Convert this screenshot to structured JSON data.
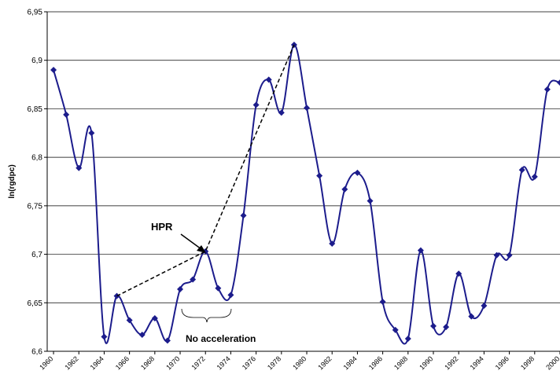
{
  "chart_data": {
    "type": "line",
    "y_label": "ln(rgdpc)",
    "x": [
      1960,
      1961,
      1962,
      1963,
      1964,
      1965,
      1966,
      1967,
      1968,
      1969,
      1970,
      1971,
      1972,
      1973,
      1974,
      1975,
      1976,
      1977,
      1978,
      1979,
      1980,
      1981,
      1982,
      1983,
      1984,
      1985,
      1986,
      1987,
      1988,
      1989,
      1990,
      1991,
      1992,
      1993,
      1994,
      1995,
      1996,
      1997,
      1998,
      1999,
      2000
    ],
    "series": [
      {
        "color": "#1c1c8c",
        "values": [
          6.89,
          6.844,
          6.789,
          6.825,
          6.615,
          6.657,
          6.632,
          6.617,
          6.634,
          6.611,
          6.664,
          6.674,
          6.703,
          6.665,
          6.658,
          6.74,
          6.854,
          6.88,
          6.846,
          6.916,
          6.851,
          6.781,
          6.711,
          6.767,
          6.784,
          6.755,
          6.651,
          6.622,
          6.613,
          6.704,
          6.626,
          6.625,
          6.68,
          6.636,
          6.647,
          6.699,
          6.699,
          6.787,
          6.78,
          6.87,
          6.877
        ]
      }
    ],
    "xlim": [
      1959.5,
      2000
    ],
    "xticks": [
      1960,
      1962,
      1964,
      1966,
      1968,
      1970,
      1972,
      1974,
      1976,
      1978,
      1980,
      1982,
      1984,
      1986,
      1988,
      1990,
      1992,
      1994,
      1996,
      1998,
      2000
    ],
    "ylim": [
      6.6,
      6.95
    ],
    "yticks": [
      {
        "value": 6.6,
        "label": "6,6"
      },
      {
        "value": 6.65,
        "label": "6,65"
      },
      {
        "value": 6.7,
        "label": "6,7"
      },
      {
        "value": 6.75,
        "label": "6,75"
      },
      {
        "value": 6.8,
        "label": "6,8"
      },
      {
        "value": 6.85,
        "label": "6,85"
      },
      {
        "value": 6.9,
        "label": "6,9"
      },
      {
        "value": 6.95,
        "label": "6,95"
      }
    ],
    "grid": true,
    "annotations": [
      "HPR",
      "No acceleration"
    ]
  }
}
